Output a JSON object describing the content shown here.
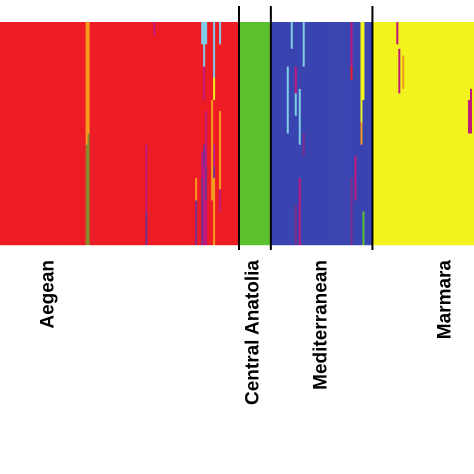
{
  "chart_data": {
    "type": "bar",
    "stacked": true,
    "normalized": true,
    "ylim": [
      0,
      1
    ],
    "colors": {
      "red": "#ed1c24",
      "green": "#5ac12d",
      "blue": "#3a44b0",
      "yellow": "#f2f21d",
      "magenta": "#c2187c",
      "orange": "#f59a1c",
      "cyan": "#7fcde6",
      "purple": "#7a2f8e",
      "olive": "#8a8a2c"
    },
    "groups": [
      {
        "label": "Aegean",
        "dominant": "red",
        "individuals": 120
      },
      {
        "label": "Central Anatolia",
        "dominant": "green",
        "individuals": 16
      },
      {
        "label": "Mediterranean",
        "dominant": "blue",
        "individuals": 51
      },
      {
        "label": "Marmara",
        "dominant": "yellow",
        "individuals": 51
      }
    ],
    "admixed_individuals": [
      {
        "group": 0,
        "index": 43,
        "segments": [
          [
            "orange",
            0.55
          ],
          [
            "olive",
            0.45
          ]
        ]
      },
      {
        "group": 0,
        "index": 44,
        "segments": [
          [
            "orange",
            0.5
          ],
          [
            "olive",
            0.5
          ]
        ]
      },
      {
        "group": 0,
        "index": 73,
        "segments": [
          [
            "red",
            0.55
          ],
          [
            "magenta",
            0.3
          ],
          [
            "purple",
            0.15
          ]
        ]
      },
      {
        "group": 0,
        "index": 77,
        "segments": [
          [
            "magenta",
            0.06
          ],
          [
            "red",
            0.94
          ]
        ]
      },
      {
        "group": 0,
        "index": 98,
        "segments": [
          [
            "red",
            0.7
          ],
          [
            "orange",
            0.1
          ],
          [
            "purple",
            0.2
          ]
        ]
      },
      {
        "group": 0,
        "index": 101,
        "segments": [
          [
            "cyan",
            0.1
          ],
          [
            "red",
            0.48
          ],
          [
            "magenta",
            0.12
          ],
          [
            "purple",
            0.3
          ]
        ]
      },
      {
        "group": 0,
        "index": 102,
        "segments": [
          [
            "cyan",
            0.2
          ],
          [
            "magenta",
            0.15
          ],
          [
            "red",
            0.2
          ],
          [
            "purple",
            0.1
          ],
          [
            "magenta",
            0.35
          ]
        ]
      },
      {
        "group": 0,
        "index": 103,
        "segments": [
          [
            "cyan",
            0.1
          ],
          [
            "red",
            0.3
          ],
          [
            "magenta",
            0.25
          ],
          [
            "purple",
            0.15
          ],
          [
            "magenta",
            0.2
          ]
        ]
      },
      {
        "group": 0,
        "index": 106,
        "segments": [
          [
            "red",
            0.35
          ],
          [
            "orange",
            0.45
          ],
          [
            "red",
            0.2
          ]
        ]
      },
      {
        "group": 0,
        "index": 107,
        "segments": [
          [
            "cyan",
            0.25
          ],
          [
            "yellow",
            0.1
          ],
          [
            "red",
            0.2
          ],
          [
            "magenta",
            0.1
          ],
          [
            "purple",
            0.05
          ],
          [
            "orange",
            0.3
          ]
        ]
      },
      {
        "group": 0,
        "index": 110,
        "segments": [
          [
            "cyan",
            0.1
          ],
          [
            "red",
            0.3
          ],
          [
            "orange",
            0.35
          ],
          [
            "magenta",
            0.1
          ],
          [
            "red",
            0.15
          ]
        ]
      },
      {
        "group": 2,
        "index": 8,
        "segments": [
          [
            "blue",
            0.2
          ],
          [
            "cyan",
            0.3
          ],
          [
            "blue",
            0.5
          ]
        ]
      },
      {
        "group": 2,
        "index": 10,
        "segments": [
          [
            "cyan",
            0.12
          ],
          [
            "blue",
            0.88
          ]
        ]
      },
      {
        "group": 2,
        "index": 12,
        "segments": [
          [
            "blue",
            0.2
          ],
          [
            "magenta",
            0.12
          ],
          [
            "cyan",
            0.1
          ],
          [
            "blue",
            0.4
          ],
          [
            "purple",
            0.18
          ]
        ]
      },
      {
        "group": 2,
        "index": 14,
        "segments": [
          [
            "blue",
            0.3
          ],
          [
            "cyan",
            0.25
          ],
          [
            "blue",
            0.15
          ],
          [
            "magenta",
            0.3
          ]
        ]
      },
      {
        "group": 2,
        "index": 16,
        "segments": [
          [
            "cyan",
            0.2
          ],
          [
            "blue",
            0.3
          ],
          [
            "purple",
            0.1
          ],
          [
            "blue",
            0.4
          ]
        ]
      },
      {
        "group": 2,
        "index": 40,
        "segments": [
          [
            "magenta",
            0.2
          ],
          [
            "red",
            0.06
          ],
          [
            "blue",
            0.44
          ],
          [
            "purple",
            0.3
          ]
        ]
      },
      {
        "group": 2,
        "index": 42,
        "segments": [
          [
            "blue",
            0.6
          ],
          [
            "magenta",
            0.2
          ],
          [
            "blue",
            0.2
          ]
        ]
      },
      {
        "group": 2,
        "index": 45,
        "segments": [
          [
            "yellow",
            0.45
          ],
          [
            "orange",
            0.1
          ],
          [
            "blue",
            0.45
          ]
        ]
      },
      {
        "group": 2,
        "index": 46,
        "segments": [
          [
            "yellow",
            0.35
          ],
          [
            "blue",
            0.5
          ],
          [
            "green",
            0.15
          ]
        ]
      },
      {
        "group": 3,
        "index": 12,
        "segments": [
          [
            "magenta",
            0.1
          ],
          [
            "yellow",
            0.9
          ]
        ]
      },
      {
        "group": 3,
        "index": 13,
        "segments": [
          [
            "yellow",
            0.12
          ],
          [
            "magenta",
            0.2
          ],
          [
            "yellow",
            0.68
          ]
        ]
      },
      {
        "group": 3,
        "index": 15,
        "segments": [
          [
            "yellow",
            0.15
          ],
          [
            "orange",
            0.15
          ],
          [
            "yellow",
            0.7
          ]
        ]
      },
      {
        "group": 3,
        "index": 48,
        "segments": [
          [
            "yellow",
            0.35
          ],
          [
            "magenta",
            0.15
          ],
          [
            "yellow",
            0.5
          ]
        ]
      },
      {
        "group": 3,
        "index": 49,
        "segments": [
          [
            "yellow",
            0.3
          ],
          [
            "magenta",
            0.2
          ],
          [
            "yellow",
            0.5
          ]
        ]
      }
    ]
  }
}
